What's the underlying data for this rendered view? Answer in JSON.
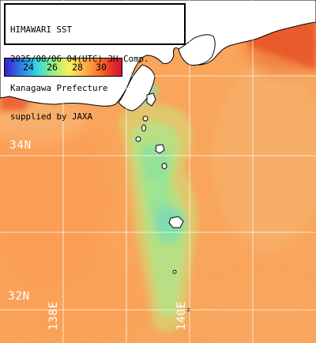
{
  "header": {
    "lines": [
      "HIMAWARI SST",
      "2025/08/06 04(UTC) 3H Comp.",
      "Kanagawa Prefecture",
      "supplied by JAXA"
    ]
  },
  "legend": {
    "ticks": [
      "24",
      "26",
      "28",
      "30"
    ],
    "colors": [
      "#3a1ec8",
      "#2f7fe8",
      "#37d7e0",
      "#9df07a",
      "#f7f060",
      "#ffb04a",
      "#f77a30",
      "#e83a22",
      "#d0123a"
    ]
  },
  "grid": {
    "lat_labels": [
      "34N",
      "32N"
    ],
    "lon_labels": [
      "138E",
      "140E"
    ]
  },
  "colors": {
    "warm_sea": "#f9a55b",
    "cool_sea": "#a4e88a",
    "land": "#ffffff",
    "grid": "#ffffff"
  }
}
